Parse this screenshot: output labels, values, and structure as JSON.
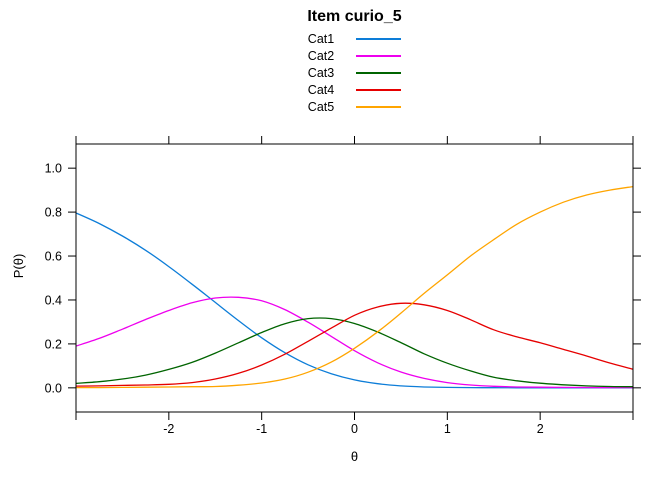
{
  "chart_data": {
    "type": "line",
    "title": "Item curio_5",
    "xlabel": "θ",
    "ylabel": "P(θ)",
    "grid": false,
    "legend_position": "top-center",
    "xlim": [
      -3,
      3
    ],
    "ylim": [
      -0.11,
      1.11
    ],
    "xticks": {
      "values": [
        -3,
        -2,
        -1,
        0,
        1,
        2,
        3
      ],
      "labels": [
        "",
        "-2",
        "-1",
        "0",
        "1",
        "2",
        ""
      ]
    },
    "yticks": {
      "values": [
        0,
        0.2,
        0.4,
        0.6,
        0.8,
        1.0
      ],
      "labels": [
        "0.0",
        "0.2",
        "0.4",
        "0.6",
        "0.8",
        "1.0"
      ]
    },
    "x": [
      -3,
      -2.75,
      -2.5,
      -2.25,
      -2,
      -1.75,
      -1.5,
      -1.25,
      -1,
      -0.75,
      -0.5,
      -0.25,
      0,
      0.25,
      0.5,
      0.75,
      1,
      1.25,
      1.5,
      1.75,
      2,
      2.25,
      2.5,
      2.75,
      3
    ],
    "series": [
      {
        "name": "Cat1",
        "color": "#0d7dd8",
        "values": [
          0.796,
          0.748,
          0.691,
          0.626,
          0.552,
          0.472,
          0.389,
          0.306,
          0.228,
          0.16,
          0.105,
          0.064,
          0.036,
          0.019,
          0.009,
          0.004,
          0.002,
          0.001,
          0.0005,
          0.0003,
          0.0002,
          0.0002,
          0.0001,
          0.0001,
          0.0001
        ]
      },
      {
        "name": "Cat2",
        "color": "#ee00ee",
        "values": [
          0.19,
          0.225,
          0.267,
          0.311,
          0.352,
          0.387,
          0.409,
          0.412,
          0.396,
          0.356,
          0.299,
          0.234,
          0.169,
          0.114,
          0.072,
          0.043,
          0.024,
          0.013,
          0.007,
          0.004,
          0.003,
          0.002,
          0.0015,
          0.001,
          0.001
        ]
      },
      {
        "name": "Cat3",
        "color": "#006400",
        "values": [
          0.02,
          0.028,
          0.04,
          0.058,
          0.084,
          0.116,
          0.158,
          0.205,
          0.252,
          0.292,
          0.315,
          0.315,
          0.293,
          0.254,
          0.206,
          0.155,
          0.112,
          0.077,
          0.048,
          0.032,
          0.021,
          0.014,
          0.009,
          0.006,
          0.005
        ]
      },
      {
        "name": "Cat4",
        "color": "#e60000",
        "values": [
          0.008,
          0.009,
          0.011,
          0.013,
          0.016,
          0.024,
          0.04,
          0.066,
          0.104,
          0.153,
          0.212,
          0.272,
          0.33,
          0.368,
          0.385,
          0.378,
          0.352,
          0.31,
          0.264,
          0.232,
          0.205,
          0.175,
          0.145,
          0.113,
          0.085
        ]
      },
      {
        "name": "Cat5",
        "color": "#ffa500",
        "values": [
          0.001,
          0.001,
          0.002,
          0.003,
          0.004,
          0.005,
          0.006,
          0.012,
          0.022,
          0.04,
          0.071,
          0.117,
          0.18,
          0.255,
          0.34,
          0.43,
          0.514,
          0.6,
          0.675,
          0.745,
          0.8,
          0.845,
          0.878,
          0.9,
          0.916
        ]
      }
    ]
  }
}
